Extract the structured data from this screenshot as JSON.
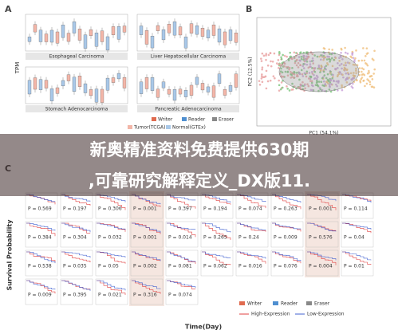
{
  "panel_a": {
    "label": "A",
    "y_label": "TPM",
    "subplots": [
      "Esophageal Carcinoma",
      "Liver Hepatocellular Carcinoma",
      "Stomach Adenocarcinoma",
      "Pancreatic Adenocarcinoma"
    ],
    "legend_groups": [
      "Writer",
      "Reader",
      "Eraser"
    ],
    "legend_tissue": [
      "Tumor(TCGA)",
      "Normal(GTEx)"
    ]
  },
  "panel_b": {
    "label": "B",
    "x_label": "PC1 (54.1%)",
    "y_label": "PC2 (12.5%)"
  },
  "banner": {
    "line1": "新奥精准资料免费提供630期",
    "line2": ",可靠研究解释定义_DX版11."
  },
  "panel_c": {
    "label": "C",
    "y_label": "Survival Probability",
    "x_label": "Time(Day)",
    "p_values": [
      [
        "P = 0.569",
        "P = 0.197",
        "P = 0.306",
        "P = 0.001",
        "P = 0.397",
        "P = 0.194",
        "P = 0.074",
        "P = 0.263",
        "P = 0.001",
        "P = 0.114"
      ],
      [
        "P = 0.384",
        "P = 0.304",
        "P = 0.032",
        "P = 0.001",
        "P = 0.014",
        "P = 0.265",
        "P = 0.24",
        "P = 0.009",
        "P = 0.576",
        "P = 0.04"
      ],
      [
        "P = 0.538",
        "P = 0.035",
        "P = 0.05",
        "P = 0.002",
        "P = 0.081",
        "P = 0.062",
        "P = 0.016",
        "P = 0.076",
        "P = 0.004",
        "P = 0.01"
      ],
      [
        "P = 0.009",
        "P = 0.395",
        "P = 0.021",
        "P = 0.316",
        "P = 0.074"
      ]
    ],
    "legend_groups": [
      "Writer",
      "Reader",
      "Eraser"
    ],
    "legend_expression": [
      "High-Expression",
      "Low-Expression"
    ]
  }
}
